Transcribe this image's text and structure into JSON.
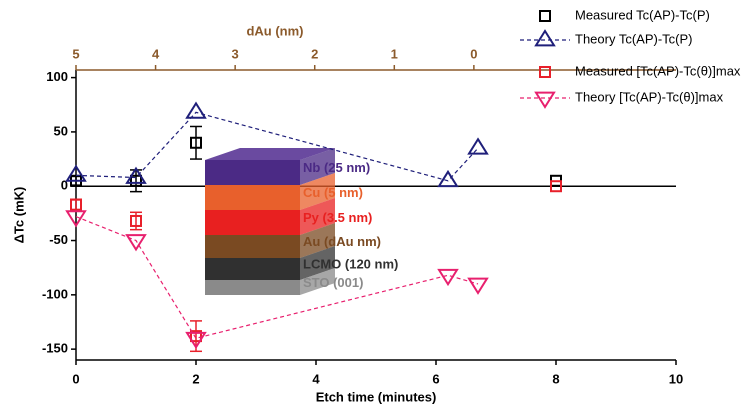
{
  "chart_data": {
    "type": "scatter",
    "xlabel": "Etch time (minutes)",
    "ylabel": "ΔTc (mK)",
    "x2label": "dAu (nm)",
    "xlim": [
      0,
      10
    ],
    "xticks": [
      0,
      2,
      4,
      6,
      8,
      10
    ],
    "ylim": [
      -160,
      107
    ],
    "yticks": [
      -150,
      -100,
      -50,
      0,
      50,
      100
    ],
    "x2lim": [
      5,
      -2.54
    ],
    "x2ticks": [
      5,
      4,
      3,
      2,
      1,
      0
    ],
    "x2color": "#8b5a2b",
    "zero_line": true,
    "series": [
      {
        "name": "Measured Tc(AP)-Tc(P)",
        "color": "#000000",
        "marker": "square",
        "dashed": false,
        "x": [
          0,
          1,
          2,
          8
        ],
        "values": [
          5,
          5,
          40,
          5
        ],
        "errors": [
          4,
          10,
          15,
          null
        ]
      },
      {
        "name": "Theory Tc(AP)-Tc(P)",
        "color": "#1f1f7a",
        "marker": "triangle-up",
        "dashed": true,
        "x": [
          0,
          1,
          2,
          6.2,
          6.7
        ],
        "values": [
          10,
          8,
          68,
          5,
          35
        ],
        "errors": [
          null,
          null,
          null,
          null,
          null
        ]
      },
      {
        "name": "Measured [Tc(AP)-Tc(θ)]max",
        "color": "#e8202a",
        "marker": "square",
        "dashed": false,
        "x": [
          0,
          1,
          2,
          8
        ],
        "values": [
          -17,
          -32,
          -138,
          0
        ],
        "errors": [
          5,
          8,
          14,
          null
        ]
      },
      {
        "name": "Theory [Tc(AP)-Tc(θ)]max",
        "color": "#e8206e",
        "marker": "triangle-down",
        "dashed": true,
        "x": [
          0,
          1,
          2,
          6.2,
          6.7
        ],
        "values": [
          -28,
          -50,
          -140,
          -82,
          -90
        ],
        "errors": [
          null,
          null,
          null,
          null,
          null
        ]
      }
    ],
    "annotations": [
      {
        "text": "Nb (25 nm)",
        "color": "#4b2a85"
      },
      {
        "text": "Cu (5 nm)",
        "color": "#e8602c"
      },
      {
        "text": "Py (3.5 nm)",
        "color": "#e82020"
      },
      {
        "text": "Au (dAu nm)",
        "color": "#7a4a22"
      },
      {
        "text": "LCMO (120 nm)",
        "color": "#303030"
      },
      {
        "text": "STO (001)",
        "color": "#8a8a8a"
      }
    ]
  }
}
